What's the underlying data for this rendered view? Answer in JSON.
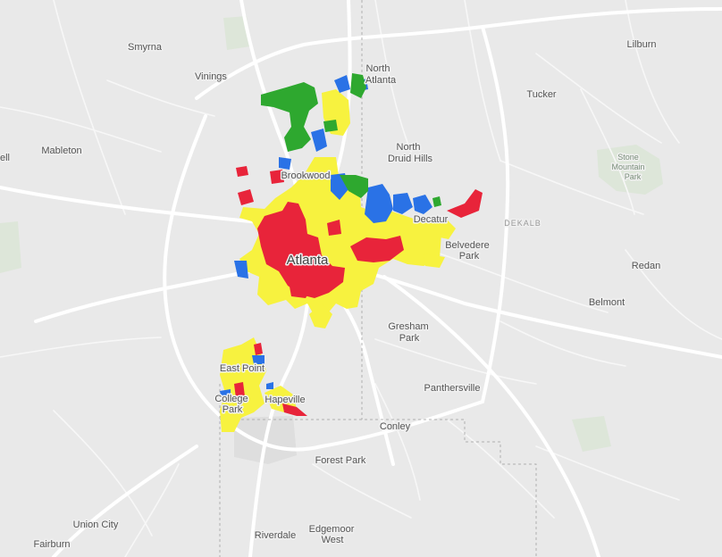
{
  "map": {
    "colors": {
      "background": "#e9e9e9",
      "red": "#e8243a",
      "yellow": "#f7f23f",
      "blue": "#2a72e6",
      "green": "#2ea82f",
      "park": "#dde6d9"
    },
    "labels": {
      "smyrna": "Smyrna",
      "vinings": "Vinings",
      "north_atlanta_1": "North",
      "north_atlanta_2": "Atlanta",
      "lilburn": "Lilburn",
      "tucker": "Tucker",
      "mableton": "Mableton",
      "ell": "ell",
      "north_druid_1": "North",
      "north_druid_2": "Druid Hills",
      "brookwood": "Brookwood",
      "stone_mountain_1": "Stone",
      "stone_mountain_2": "Mountain",
      "stone_mountain_3": "Park",
      "decatur": "Decatur",
      "dekalb": "DEKALB",
      "belvedere_1": "Belvedere",
      "belvedere_2": "Park",
      "atlanta": "Atlanta",
      "redan": "Redan",
      "belmont": "Belmont",
      "gresham_1": "Gresham",
      "gresham_2": "Park",
      "east_point": "East Point",
      "panthersville": "Panthersville",
      "college_park_1": "College",
      "college_park_2": "Park",
      "hapeville": "Hapeville",
      "conley": "Conley",
      "forest_park": "Forest Park",
      "union_city": "Union City",
      "edgemoor_1": "Edgemoor",
      "edgemoor_2": "West",
      "riverdale": "Riverdale",
      "fairburn": "Fairburn"
    }
  }
}
